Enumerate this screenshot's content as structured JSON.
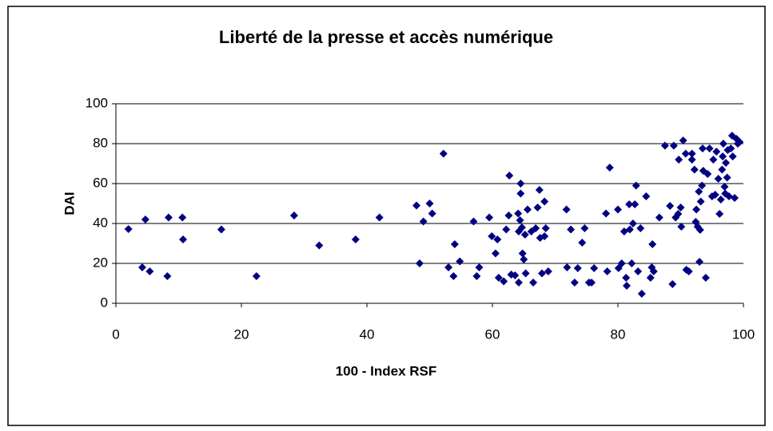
{
  "chart_data": {
    "type": "scatter",
    "title": "Liberté de la presse et accès numérique",
    "x_label": "100 - Index RSF",
    "y_label": "DAI",
    "color": "#000080",
    "grid": true,
    "xlim": [
      0,
      100
    ],
    "xticks": [
      0,
      20,
      40,
      60,
      80,
      100
    ],
    "ylim": [
      0,
      100
    ],
    "yticks": [
      0,
      20,
      40,
      60,
      80,
      100
    ],
    "x": [
      2.0,
      4.7,
      4.2,
      5.4,
      8.2,
      8.4,
      10.6,
      10.7,
      16.8,
      22.4,
      28.4,
      32.4,
      38.2,
      42.0,
      47.9,
      48.4,
      49.0,
      50.0,
      50.4,
      52.2,
      53.0,
      53.8,
      54.0,
      54.8,
      57.0,
      57.5,
      57.9,
      59.5,
      59.9,
      60.5,
      60.8,
      61.0,
      61.8,
      62.2,
      62.6,
      62.7,
      63.0,
      63.6,
      64.1,
      64.2,
      64.2,
      64.5,
      64.5,
      64.4,
      64.7,
      64.8,
      65.0,
      65.2,
      65.3,
      65.6,
      66.2,
      66.5,
      66.9,
      67.2,
      67.5,
      67.6,
      67.9,
      68.3,
      68.3,
      68.5,
      68.9,
      71.8,
      71.9,
      72.5,
      73.1,
      73.6,
      74.3,
      74.7,
      75.4,
      75.8,
      76.2,
      78.1,
      78.3,
      78.7,
      80.0,
      80.1,
      80.6,
      81.0,
      81.3,
      81.4,
      81.8,
      81.9,
      82.2,
      82.4,
      82.7,
      82.9,
      83.2,
      83.6,
      83.8,
      84.5,
      85.2,
      85.4,
      85.5,
      85.7,
      86.6,
      87.5,
      88.3,
      88.7,
      88.9,
      89.2,
      89.6,
      90.0,
      90.1,
      89.7,
      90.4,
      90.8,
      90.9,
      91.3,
      91.8,
      91.8,
      92.2,
      92.4,
      92.5,
      92.7,
      92.9,
      93.0,
      93.1,
      93.2,
      93.4,
      93.5,
      93.6,
      94.0,
      94.3,
      94.6,
      95.0,
      95.2,
      95.5,
      95.7,
      96.0,
      96.2,
      96.4,
      96.6,
      96.7,
      96.8,
      97.0,
      97.1,
      97.2,
      97.4,
      97.5,
      97.7,
      98.0,
      98.2,
      98.3,
      98.6,
      98.9,
      99.1,
      99.4
    ],
    "values": [
      37.2,
      42,
      18,
      16,
      13.6,
      43,
      43,
      32,
      37,
      13.6,
      44,
      29,
      32,
      43,
      49,
      20,
      41,
      50,
      45,
      75,
      18,
      13.6,
      29.6,
      21,
      41,
      13.6,
      18,
      43,
      33.6,
      25,
      32,
      12.8,
      11,
      37,
      44,
      64,
      14.4,
      14,
      45,
      36,
      10.4,
      60,
      55,
      41.6,
      38,
      25,
      22,
      34.4,
      15,
      47,
      36,
      10.4,
      37.6,
      48,
      56.8,
      32.8,
      15,
      51,
      33.6,
      37.6,
      16,
      47,
      18,
      37,
      10.4,
      17.6,
      30.4,
      37.6,
      10.4,
      10.4,
      17.6,
      45,
      16,
      68,
      47,
      17.6,
      20,
      36,
      12.8,
      8.8,
      49.6,
      37,
      20,
      40,
      49.6,
      59,
      16,
      37.6,
      4.8,
      53.6,
      12.8,
      18,
      29.6,
      16,
      43,
      79,
      48.8,
      9.6,
      79,
      43,
      44.8,
      48,
      38.4,
      72,
      81.6,
      75,
      16.8,
      16,
      72,
      75,
      67,
      40.8,
      47,
      38.4,
      56,
      20.8,
      36.8,
      51,
      59,
      77.6,
      66.4,
      12.8,
      64.8,
      77.6,
      53.6,
      72,
      54.4,
      76,
      62.4,
      44.8,
      52,
      67,
      73.6,
      80,
      58.4,
      55,
      70.4,
      63,
      76.8,
      53.6,
      77.6,
      84,
      73.6,
      52.8,
      82.4,
      80,
      80.8
    ]
  }
}
